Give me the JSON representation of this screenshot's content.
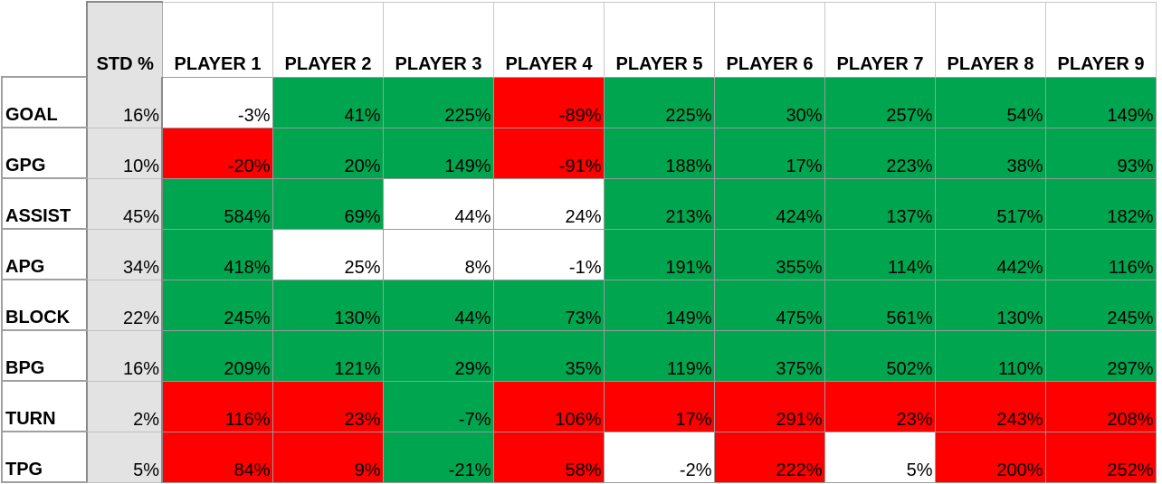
{
  "header": {
    "std_label": "STD %",
    "players": [
      "PLAYER 1",
      "PLAYER 2",
      "PLAYER 3",
      "PLAYER 4",
      "PLAYER 5",
      "PLAYER 6",
      "PLAYER 7",
      "PLAYER 8",
      "PLAYER 9"
    ]
  },
  "colors": {
    "green": "#00a64f",
    "red": "#fe0000",
    "white": "#ffffff",
    "std_fill": "#e3e3e3"
  },
  "rows": [
    {
      "metric": "GOAL",
      "std": "16%",
      "values": [
        "-3%",
        "41%",
        "225%",
        "-89%",
        "225%",
        "30%",
        "257%",
        "54%",
        "149%"
      ],
      "fills": [
        "white",
        "green",
        "green",
        "red",
        "green",
        "green",
        "green",
        "green",
        "green"
      ]
    },
    {
      "metric": "GPG",
      "std": "10%",
      "values": [
        "-20%",
        "20%",
        "149%",
        "-91%",
        "188%",
        "17%",
        "223%",
        "38%",
        "93%"
      ],
      "fills": [
        "red",
        "green",
        "green",
        "red",
        "green",
        "green",
        "green",
        "green",
        "green"
      ]
    },
    {
      "metric": "ASSIST",
      "std": "45%",
      "values": [
        "584%",
        "69%",
        "44%",
        "24%",
        "213%",
        "424%",
        "137%",
        "517%",
        "182%"
      ],
      "fills": [
        "green",
        "green",
        "white",
        "white",
        "green",
        "green",
        "green",
        "green",
        "green"
      ]
    },
    {
      "metric": "APG",
      "std": "34%",
      "values": [
        "418%",
        "25%",
        "8%",
        "-1%",
        "191%",
        "355%",
        "114%",
        "442%",
        "116%"
      ],
      "fills": [
        "green",
        "white",
        "white",
        "white",
        "green",
        "green",
        "green",
        "green",
        "green"
      ]
    },
    {
      "metric": "BLOCK",
      "std": "22%",
      "values": [
        "245%",
        "130%",
        "44%",
        "73%",
        "149%",
        "475%",
        "561%",
        "130%",
        "245%"
      ],
      "fills": [
        "green",
        "green",
        "green",
        "green",
        "green",
        "green",
        "green",
        "green",
        "green"
      ]
    },
    {
      "metric": "BPG",
      "std": "16%",
      "values": [
        "209%",
        "121%",
        "29%",
        "35%",
        "119%",
        "375%",
        "502%",
        "110%",
        "297%"
      ],
      "fills": [
        "green",
        "green",
        "green",
        "green",
        "green",
        "green",
        "green",
        "green",
        "green"
      ]
    },
    {
      "metric": "TURN",
      "std": "2%",
      "values": [
        "116%",
        "23%",
        "-7%",
        "106%",
        "17%",
        "291%",
        "23%",
        "243%",
        "208%"
      ],
      "fills": [
        "red",
        "red",
        "green",
        "red",
        "red",
        "red",
        "red",
        "red",
        "red"
      ]
    },
    {
      "metric": "TPG",
      "std": "5%",
      "values": [
        "84%",
        "9%",
        "-21%",
        "58%",
        "-2%",
        "222%",
        "5%",
        "200%",
        "252%"
      ],
      "fills": [
        "red",
        "red",
        "green",
        "red",
        "white",
        "red",
        "white",
        "red",
        "red"
      ]
    }
  ]
}
